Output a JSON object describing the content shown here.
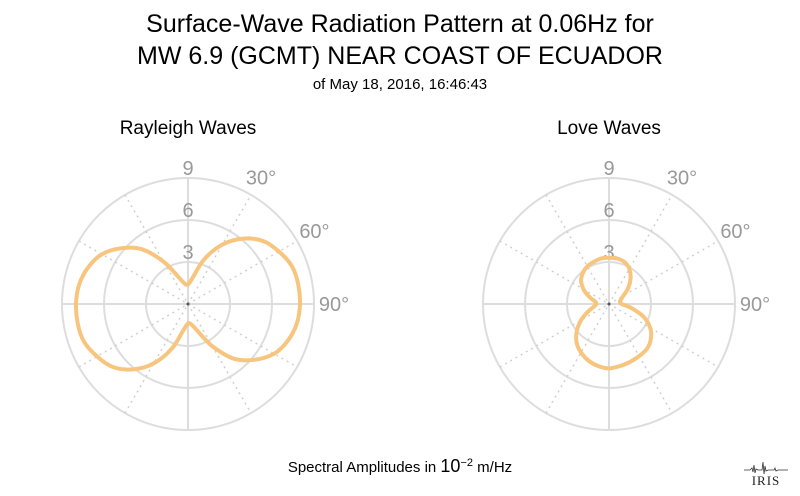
{
  "header": {
    "title_line1": "Surface-Wave Radiation Pattern at 0.06Hz for",
    "title_line2": "MW 6.9 (GCMT) NEAR COAST OF ECUADOR",
    "subtitle": "of May 18, 2016, 16:46:43"
  },
  "footer": {
    "label_prefix": "Spectral Amplitudes in",
    "base": "10",
    "exponent": "−2",
    "unit": "m/Hz"
  },
  "logo": {
    "text": "IRIS",
    "icon": "iris-seismogram-logo"
  },
  "colors": {
    "pattern": "#f7c57e",
    "grid": "#dddddd",
    "grid_dotted": "#d0d0d0",
    "labels": "#999999"
  },
  "chart_data": [
    {
      "type": "polar-line",
      "title": "Rayleigh Waves",
      "radial_ticks": [
        "3",
        "6",
        "9"
      ],
      "radial_range": [
        0,
        9
      ],
      "angular_labels": [
        "30°",
        "60°",
        "90°"
      ],
      "angle_direction": "clockwise from north",
      "series": [
        {
          "angles_deg": [
            0,
            10,
            20,
            30,
            40,
            50,
            60,
            70,
            80,
            90,
            100,
            110,
            120,
            130,
            140,
            150,
            160,
            170,
            180,
            190,
            200,
            210,
            220,
            230,
            240,
            250,
            260,
            270,
            280,
            290,
            300,
            310,
            320,
            330,
            340,
            350
          ],
          "r": [
            1.4,
            1.9,
            3.4,
            4.9,
            6.1,
            7.0,
            7.5,
            7.9,
            8.0,
            8.0,
            7.9,
            7.6,
            7.1,
            6.2,
            5.1,
            3.5,
            2.1,
            1.5,
            1.4,
            1.9,
            3.4,
            4.9,
            6.1,
            7.0,
            7.5,
            7.9,
            8.0,
            8.0,
            7.9,
            7.6,
            7.1,
            6.2,
            5.1,
            3.5,
            2.1,
            1.5
          ]
        }
      ]
    },
    {
      "type": "polar-line",
      "title": "Love Waves",
      "radial_ticks": [
        "3",
        "6",
        "9"
      ],
      "radial_range": [
        0,
        9
      ],
      "angular_labels": [
        "30°",
        "60°",
        "90°"
      ],
      "angle_direction": "clockwise from north",
      "series": [
        {
          "angles_deg": [
            0,
            10,
            20,
            30,
            40,
            50,
            60,
            70,
            80,
            90,
            100,
            110,
            120,
            130,
            140,
            150,
            160,
            170,
            180,
            190,
            200,
            210,
            220,
            230,
            240,
            250,
            260,
            270,
            280,
            290,
            300,
            310,
            320,
            330,
            340,
            350
          ],
          "r": [
            3.3,
            3.3,
            3.2,
            2.9,
            2.4,
            1.8,
            1.2,
            0.9,
            0.8,
            0.9,
            1.6,
            2.6,
            3.4,
            3.9,
            4.2,
            4.3,
            4.4,
            4.5,
            4.6,
            4.5,
            4.3,
            4.0,
            3.6,
            3.0,
            2.3,
            1.6,
            1.1,
            0.9,
            1.0,
            1.5,
            2.1,
            2.6,
            2.9,
            3.1,
            3.2,
            3.3
          ]
        }
      ]
    }
  ]
}
